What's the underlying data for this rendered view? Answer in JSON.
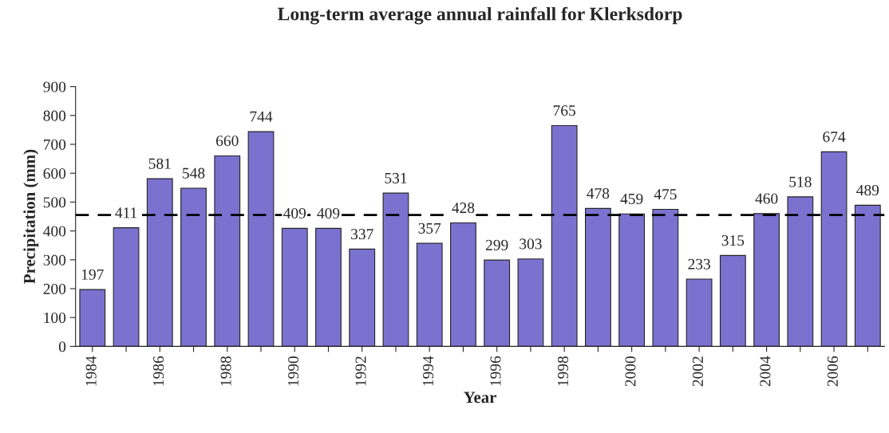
{
  "chart_data": {
    "type": "bar",
    "title": "Long-term average annual rainfall for Klerksdorp",
    "xlabel": "Year",
    "ylabel": "Precipitation (mm)",
    "categories": [
      "1984",
      null,
      "1986",
      null,
      "1988",
      null,
      "1990",
      null,
      "1992",
      null,
      "1994",
      null,
      "1996",
      null,
      "1998",
      null,
      "2000",
      null,
      "2002",
      null,
      "2004",
      null,
      "2006",
      null
    ],
    "series": [
      {
        "color": "#7b72d0",
        "values": [
          197,
          411,
          581,
          548,
          660,
          744,
          409,
          409,
          337,
          531,
          357,
          428,
          299,
          303,
          765,
          478,
          459,
          475,
          233,
          315,
          460,
          518,
          674,
          489
        ]
      }
    ],
    "ylim": [
      0,
      900
    ],
    "yticks": [
      0,
      100,
      200,
      300,
      400,
      500,
      600,
      700,
      800,
      900
    ],
    "ref_lines": [
      {
        "axis": "y",
        "value": 455,
        "color": "#000000",
        "line_style": "dashed"
      }
    ],
    "data_labels": true,
    "grid": false,
    "legend": false
  }
}
